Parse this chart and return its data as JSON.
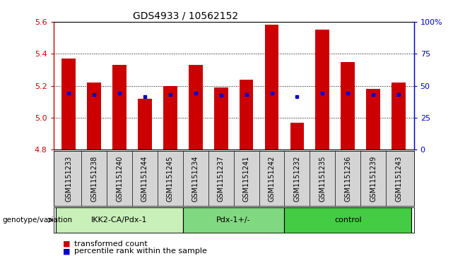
{
  "title": "GDS4933 / 10562152",
  "samples": [
    "GSM1151233",
    "GSM1151238",
    "GSM1151240",
    "GSM1151244",
    "GSM1151245",
    "GSM1151234",
    "GSM1151237",
    "GSM1151241",
    "GSM1151242",
    "GSM1151232",
    "GSM1151235",
    "GSM1151236",
    "GSM1151239",
    "GSM1151243"
  ],
  "red_values": [
    5.37,
    5.22,
    5.33,
    5.12,
    5.2,
    5.33,
    5.19,
    5.24,
    5.58,
    4.97,
    5.55,
    5.35,
    5.18,
    5.22
  ],
  "blue_values": [
    5.155,
    5.145,
    5.155,
    5.13,
    5.145,
    5.155,
    5.14,
    5.145,
    5.155,
    5.13,
    5.155,
    5.155,
    5.145,
    5.145
  ],
  "groups": [
    {
      "label": "IKK2-CA/Pdx-1",
      "start": 0,
      "end": 5,
      "color": "#c8f0b8"
    },
    {
      "label": "Pdx-1+/-",
      "start": 5,
      "end": 9,
      "color": "#80d880"
    },
    {
      "label": "control",
      "start": 9,
      "end": 14,
      "color": "#44cc44"
    }
  ],
  "ymin": 4.8,
  "ymax": 5.6,
  "bar_color": "#cc0000",
  "dot_color": "#0000cc",
  "tick_color_left": "#cc0000",
  "tick_color_right": "#0000cc",
  "legend_items": [
    {
      "label": "transformed count",
      "color": "#cc0000"
    },
    {
      "label": "percentile rank within the sample",
      "color": "#0000cc"
    }
  ],
  "genotype_label": "genotype/variation",
  "tick_vals_left": [
    4.8,
    5.0,
    5.2,
    5.4,
    5.6
  ],
  "tick_vals_right": [
    0,
    25,
    50,
    75,
    100
  ],
  "grid_lines": [
    5.0,
    5.2,
    5.4
  ],
  "label_area_color": "#d4d4d4"
}
